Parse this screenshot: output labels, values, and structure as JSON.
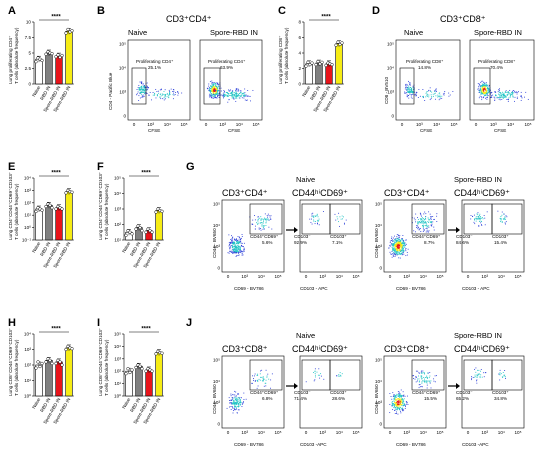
{
  "panels": {
    "A": "A",
    "B": "B",
    "C": "C",
    "D": "D",
    "E": "E",
    "F": "F",
    "G": "G",
    "H": "H",
    "I": "I",
    "J": "J"
  },
  "chart_data": [
    {
      "type": "bar",
      "panel": "A",
      "ylabel": [
        "Lung proliferating CD4⁺",
        "T cells (absolute frequency)"
      ],
      "categories": [
        "Naive",
        "RBD IN",
        "Spore-RBD IN",
        "Spore-RBD IN"
      ],
      "colors": [
        "#ffffff",
        "#808080",
        "#e8141b",
        "#f6ec15"
      ],
      "values": [
        4.0,
        5.0,
        4.5,
        8.5
      ],
      "points": [
        [
          3.6,
          4.2,
          4.0,
          3.8
        ],
        [
          4.8,
          5.2,
          5.0,
          4.9
        ],
        [
          4.4,
          4.7,
          4.3,
          4.6
        ],
        [
          8.2,
          8.8,
          8.4,
          8.6
        ]
      ],
      "ylim": [
        0,
        10
      ],
      "sig": "****"
    },
    {
      "type": "bar",
      "panel": "C",
      "ylabel": [
        "Lung proliferating CD8⁺",
        "T cells (absolute frequency)"
      ],
      "categories": [
        "Naive",
        "RBD IN",
        "Spore-RBD IN",
        "Spore-RBD IN"
      ],
      "colors": [
        "#ffffff",
        "#808080",
        "#e8141b",
        "#f6ec15"
      ],
      "values": [
        2.6,
        2.7,
        2.6,
        5.2
      ],
      "points": [
        [
          2.3,
          2.8,
          2.5,
          2.7
        ],
        [
          2.5,
          2.9,
          2.6,
          2.8
        ],
        [
          2.4,
          2.7,
          2.6,
          2.5
        ],
        [
          5.0,
          5.4,
          5.1,
          5.3
        ]
      ],
      "ylim": [
        0,
        8
      ],
      "sig": "****"
    },
    {
      "type": "bar",
      "panel": "E",
      "ylabel": [
        "Lung CD4⁺CD44⁺CD69⁺CD103⁺",
        "T cells (absolute frequency)"
      ],
      "ylog": true,
      "yticks": [
        "10⁻¹",
        "10⁰",
        "10¹",
        "10²",
        "10³",
        "10⁴"
      ],
      "categories": [
        "Naive",
        "RBD IN",
        "Spore-RBD IN",
        "Spore-RBD IN"
      ],
      "colors": [
        "#ffffff",
        "#808080",
        "#e8141b",
        "#f6ec15"
      ],
      "values": [
        1.5,
        1.8,
        1.6,
        2.9
      ],
      "points": [
        [
          1.3,
          1.6,
          1.5,
          1.4
        ],
        [
          1.7,
          1.9,
          1.8,
          1.6
        ],
        [
          1.5,
          1.7,
          1.6,
          1.5
        ],
        [
          2.8,
          3.0,
          2.9,
          2.85
        ]
      ],
      "ylim": [
        -1,
        4
      ],
      "sig": "****"
    },
    {
      "type": "bar",
      "panel": "F",
      "ylabel": [
        "Lung CD4⁺CD44⁺CD69⁺CD103⁺",
        "T cells (absolute frequency)"
      ],
      "ylog": true,
      "yticks": [
        "10¹",
        "10²",
        "10³",
        "10⁴",
        "10⁵"
      ],
      "categories": [
        "Naive",
        "RBD IN",
        "Spore-RBD IN",
        "Spore-RBD IN"
      ],
      "colors": [
        "#ffffff",
        "#808080",
        "#e8141b",
        "#f6ec15"
      ],
      "values": [
        1.5,
        1.8,
        1.6,
        2.9
      ],
      "points": [
        [
          1.3,
          1.6,
          1.5,
          1.4
        ],
        [
          1.7,
          1.9,
          1.8,
          1.6
        ],
        [
          1.5,
          1.7,
          1.6,
          1.5
        ],
        [
          2.8,
          3.0,
          2.9,
          2.85
        ]
      ],
      "ylim": [
        1,
        5
      ],
      "sig": "****"
    },
    {
      "type": "bar",
      "panel": "H",
      "ylabel": [
        "Lung CD8⁺CD44⁺CD69⁺CD103⁺",
        "T cells (absolute frequency)"
      ],
      "ylog": true,
      "yticks": [
        "10⁰",
        "10¹",
        "10²",
        "10³",
        "10⁴"
      ],
      "categories": [
        "Naive",
        "RBD IN",
        "Spore-RBD IN",
        "Spore-RBD IN"
      ],
      "colors": [
        "#ffffff",
        "#808080",
        "#e8141b",
        "#f6ec15"
      ],
      "values": [
        2.0,
        2.3,
        2.2,
        3.1
      ],
      "points": [
        [
          1.8,
          2.2,
          1.9,
          2.1
        ],
        [
          2.2,
          2.4,
          2.3,
          2.1
        ],
        [
          2.1,
          2.3,
          2.2,
          2.0
        ],
        [
          3.0,
          3.2,
          3.1,
          3.05
        ]
      ],
      "ylim": [
        0,
        4
      ],
      "sig": "****"
    },
    {
      "type": "bar",
      "panel": "I",
      "ylabel": [
        "Lung CD8⁺CD44⁺CD69⁺CD103⁺",
        "T cells (absolute frequency)"
      ],
      "ylog": true,
      "yticks": [
        "10⁰",
        "10¹",
        "10²",
        "10³",
        "10⁴",
        "10⁵"
      ],
      "categories": [
        "Naive",
        "RBD IN",
        "Spore-RBD IN",
        "Spore-RBD IN"
      ],
      "colors": [
        "#ffffff",
        "#808080",
        "#e8141b",
        "#f6ec15"
      ],
      "values": [
        2.0,
        2.4,
        2.1,
        3.5
      ],
      "points": [
        [
          1.8,
          2.2,
          1.9,
          2.1
        ],
        [
          2.3,
          2.5,
          2.4,
          2.2
        ],
        [
          2.0,
          2.2,
          2.1,
          2.0
        ],
        [
          3.4,
          3.6,
          3.5,
          3.45
        ]
      ],
      "ylim": [
        0,
        5
      ],
      "sig": "****"
    }
  ],
  "facs": {
    "B": {
      "header": "CD3⁺CD4⁺",
      "left": {
        "title": "Naive",
        "gate": "Proliferating CD4⁺",
        "pct": "25.1%"
      },
      "right": {
        "title": "Spore-RBD IN",
        "gate": "Proliferating CD4⁺",
        "pct": "63.9%"
      },
      "ylabel": "CD4 - Pacific Blue",
      "xlabel": "CFSE"
    },
    "D": {
      "header": "CD3⁺CD8⁺",
      "left": {
        "title": "Naive",
        "gate": "Proliferating CD8⁺",
        "pct": "14.8%"
      },
      "right": {
        "title": "Spore-RBD IN",
        "gate": "Proliferating CD8⁺",
        "pct": "70.4%"
      },
      "ylabel": "CD8 - BV510",
      "xlabel": "CFSE"
    },
    "G": {
      "left_title": "Naive",
      "right_title": "Spore-RBD IN",
      "h1": "CD3⁺CD4⁺",
      "h2": "CD44ʰⁱCD69⁺",
      "ylabel": "CD44 - BV650",
      "xlabel1": "CD69 - BV786",
      "xlabel2": "CD103 - APC",
      "naive": {
        "gate": "CD44⁺CD69⁺",
        "gpct": "5.6%",
        "neg": "CD103⁻",
        "negpct": "92.9%",
        "pos": "CD103⁺",
        "pospct": "7.1%"
      },
      "spore": {
        "gate": "CD44⁺CD69⁺",
        "gpct": "8.7%",
        "neg": "CD103⁻",
        "negpct": "84.6%",
        "pos": "CD103⁺",
        "pospct": "15.4%"
      }
    },
    "J": {
      "left_title": "Naive",
      "right_title": "Spore-RBD IN",
      "h1": "CD3⁺CD8⁺",
      "h2": "CD44ʰⁱCD69⁺",
      "ylabel": "CD44 - BV650",
      "xlabel1": "CD69 - BV786",
      "xlabel2": "CD103 -APC",
      "naive": {
        "gate": "CD44⁺CD69⁺",
        "gpct": "6.8%",
        "neg": "CD103⁻",
        "negpct": "71.4%",
        "pos": "CD103⁺",
        "pospct": "28.6%"
      },
      "spore": {
        "gate": "CD44⁺CD69⁺",
        "gpct": "15.5%",
        "neg": "CD103⁻",
        "negpct": "65.2%",
        "pos": "CD103⁺",
        "pospct": "34.8%"
      }
    }
  },
  "ticks": {
    "linear_exp": [
      "10⁵",
      "10⁴",
      "10³",
      "0"
    ],
    "x_exp": [
      "0",
      "10³",
      "10⁴",
      "10⁵"
    ]
  },
  "colors": {
    "density_low": "#2b3ed8",
    "density_mid": "#21c4c4",
    "density_high": "#f6ec15",
    "density_peak": "#e8141b"
  }
}
